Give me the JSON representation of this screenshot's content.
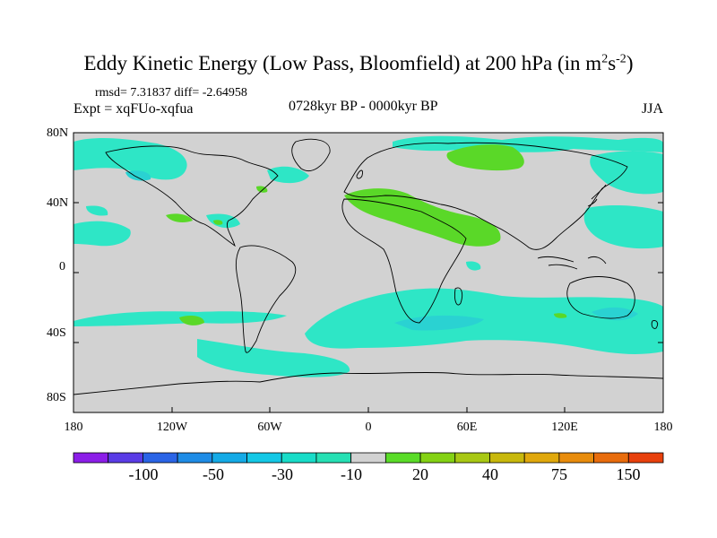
{
  "title": {
    "main": "Eddy Kinetic Energy (Low Pass, Bloomfield) at 200 hPa (in m",
    "unit_m_exp": "2",
    "unit_s": "s",
    "unit_s_exp": "-2",
    "close": ")"
  },
  "stats": "rmsd= 7.31837 diff= -2.64958",
  "experiment": "Expt = xqFUo-xqfua",
  "period": "0728kyr BP - 0000kyr BP",
  "season": "JJA",
  "axes": {
    "y_ticks": [
      "80N",
      "40N",
      "0",
      "40S",
      "80S"
    ],
    "x_ticks": [
      "180",
      "120W",
      "60W",
      "0",
      "60E",
      "120E",
      "180"
    ]
  },
  "colorbar": {
    "labels": [
      "-100",
      "-50",
      "-30",
      "-10",
      "20",
      "40",
      "75",
      "150"
    ],
    "colors": [
      "#8c1ee8",
      "#5a3ce6",
      "#2a64e6",
      "#1e8ce6",
      "#14aae6",
      "#14c8e6",
      "#18dcc8",
      "#26e0b4",
      "#d2d2d2",
      "#5adc28",
      "#84d214",
      "#a8c814",
      "#c8b80c",
      "#e0a80c",
      "#e88c0c",
      "#e86c0c",
      "#e8400c"
    ]
  },
  "colors": {
    "land_sea_background": "#d2d2d2",
    "negative_anomaly": "#2ee6c6",
    "strong_negative_anomaly": "#2ad2d2",
    "positive_anomaly": "#5ad828"
  }
}
